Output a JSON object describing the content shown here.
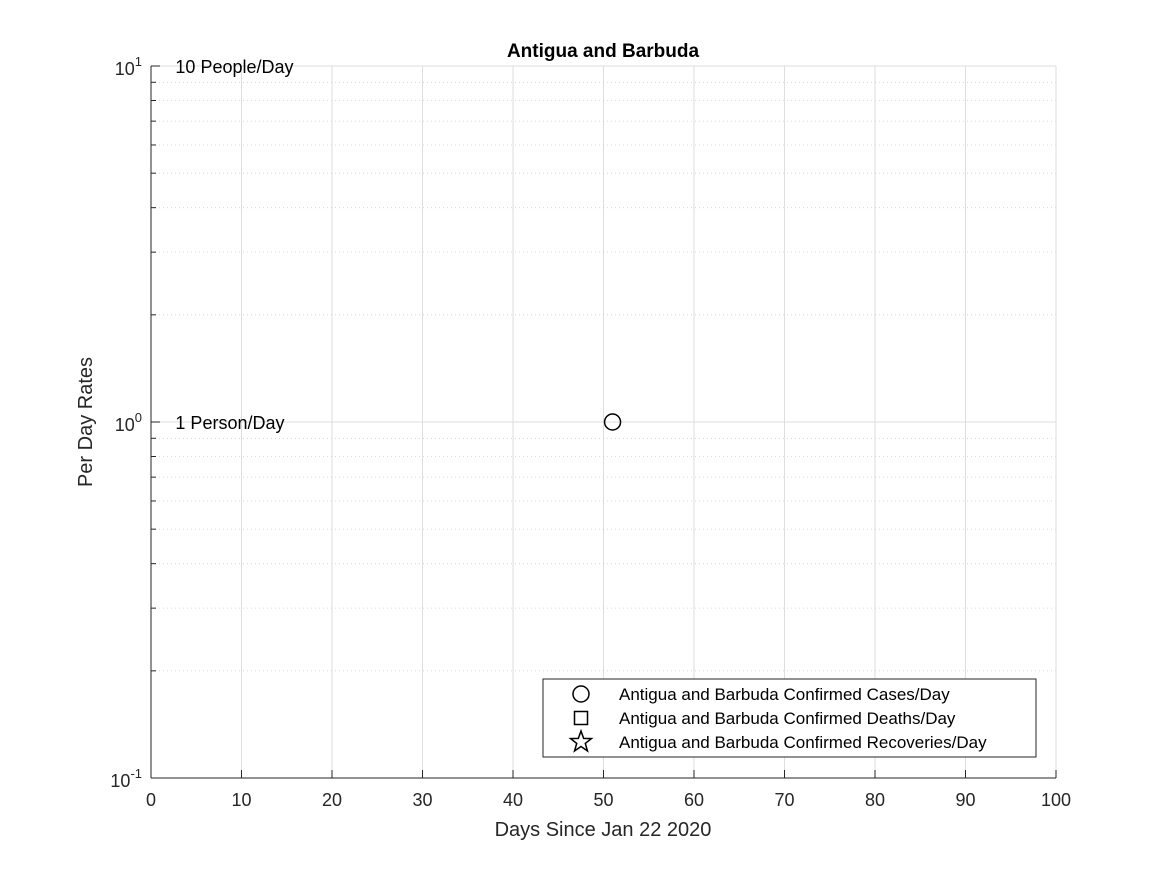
{
  "chart_data": {
    "type": "scatter",
    "title": "Antigua and Barbuda",
    "xlabel": "Days Since Jan 22 2020",
    "ylabel": "Per Day Rates",
    "xlim": [
      0,
      100
    ],
    "ylim": [
      0.1,
      10
    ],
    "yscale": "log",
    "grid": true,
    "x_ticks": [
      0,
      10,
      20,
      30,
      40,
      50,
      60,
      70,
      80,
      90,
      100
    ],
    "y_ticks": [
      {
        "value": 0.1,
        "base": "10",
        "exp": "-1"
      },
      {
        "value": 1,
        "base": "10",
        "exp": "0"
      },
      {
        "value": 10,
        "base": "10",
        "exp": "1"
      }
    ],
    "annotations": [
      {
        "text": "10 People/Day",
        "x": 2.7,
        "y": 10
      },
      {
        "text": "1 Person/Day",
        "x": 2.7,
        "y": 1
      }
    ],
    "legend_position": "bottom-right",
    "series": [
      {
        "name": "Antigua and Barbuda Confirmed Cases/Day",
        "marker": "circle",
        "x": [
          51
        ],
        "y": [
          1
        ]
      },
      {
        "name": "Antigua and Barbuda Confirmed Deaths/Day",
        "marker": "square",
        "x": [],
        "y": []
      },
      {
        "name": "Antigua and Barbuda Confirmed Recoveries/Day",
        "marker": "star",
        "x": [],
        "y": []
      }
    ]
  }
}
